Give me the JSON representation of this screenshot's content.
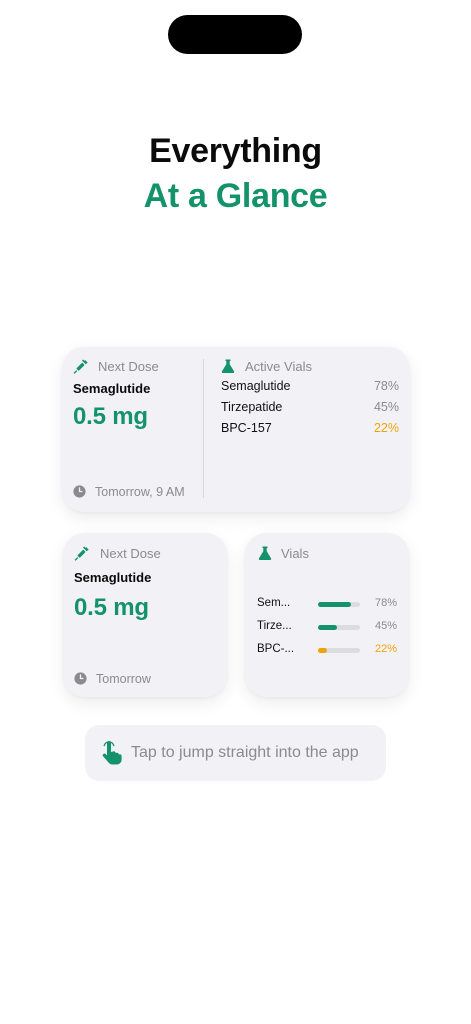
{
  "headline": {
    "line1": "Everything",
    "line2": "At a Glance"
  },
  "large_widget": {
    "next_dose": {
      "label": "Next Dose",
      "medication": "Semaglutide",
      "amount": "0.5 mg",
      "time": "Tomorrow, 9 AM"
    },
    "active_vials": {
      "label": "Active Vials",
      "items": [
        {
          "name": "Semaglutide",
          "percent": "78%"
        },
        {
          "name": "Tirzepatide",
          "percent": "45%"
        },
        {
          "name": "BPC-157",
          "percent": "22%"
        }
      ]
    }
  },
  "small_dose_widget": {
    "label": "Next Dose",
    "medication": "Semaglutide",
    "amount": "0.5 mg",
    "time": "Tomorrow"
  },
  "small_vials_widget": {
    "label": "Vials",
    "items": [
      {
        "name": "Sem...",
        "percent": "78%",
        "level": 0.78,
        "color": "#14936a"
      },
      {
        "name": "Tirze...",
        "percent": "45%",
        "level": 0.45,
        "color": "#14936a"
      },
      {
        "name": "BPC-...",
        "percent": "22%",
        "level": 0.22,
        "color": "#f0a20a"
      }
    ]
  },
  "hint": {
    "text": "Tap to jump straight into the app"
  },
  "colors": {
    "accent": "#14936a",
    "warning": "#f0a20a",
    "muted": "#8a8a8f",
    "card": "#f2f2f6"
  },
  "icons": [
    "syringe-icon",
    "flask-icon",
    "clock-icon",
    "tap-hand-icon"
  ]
}
